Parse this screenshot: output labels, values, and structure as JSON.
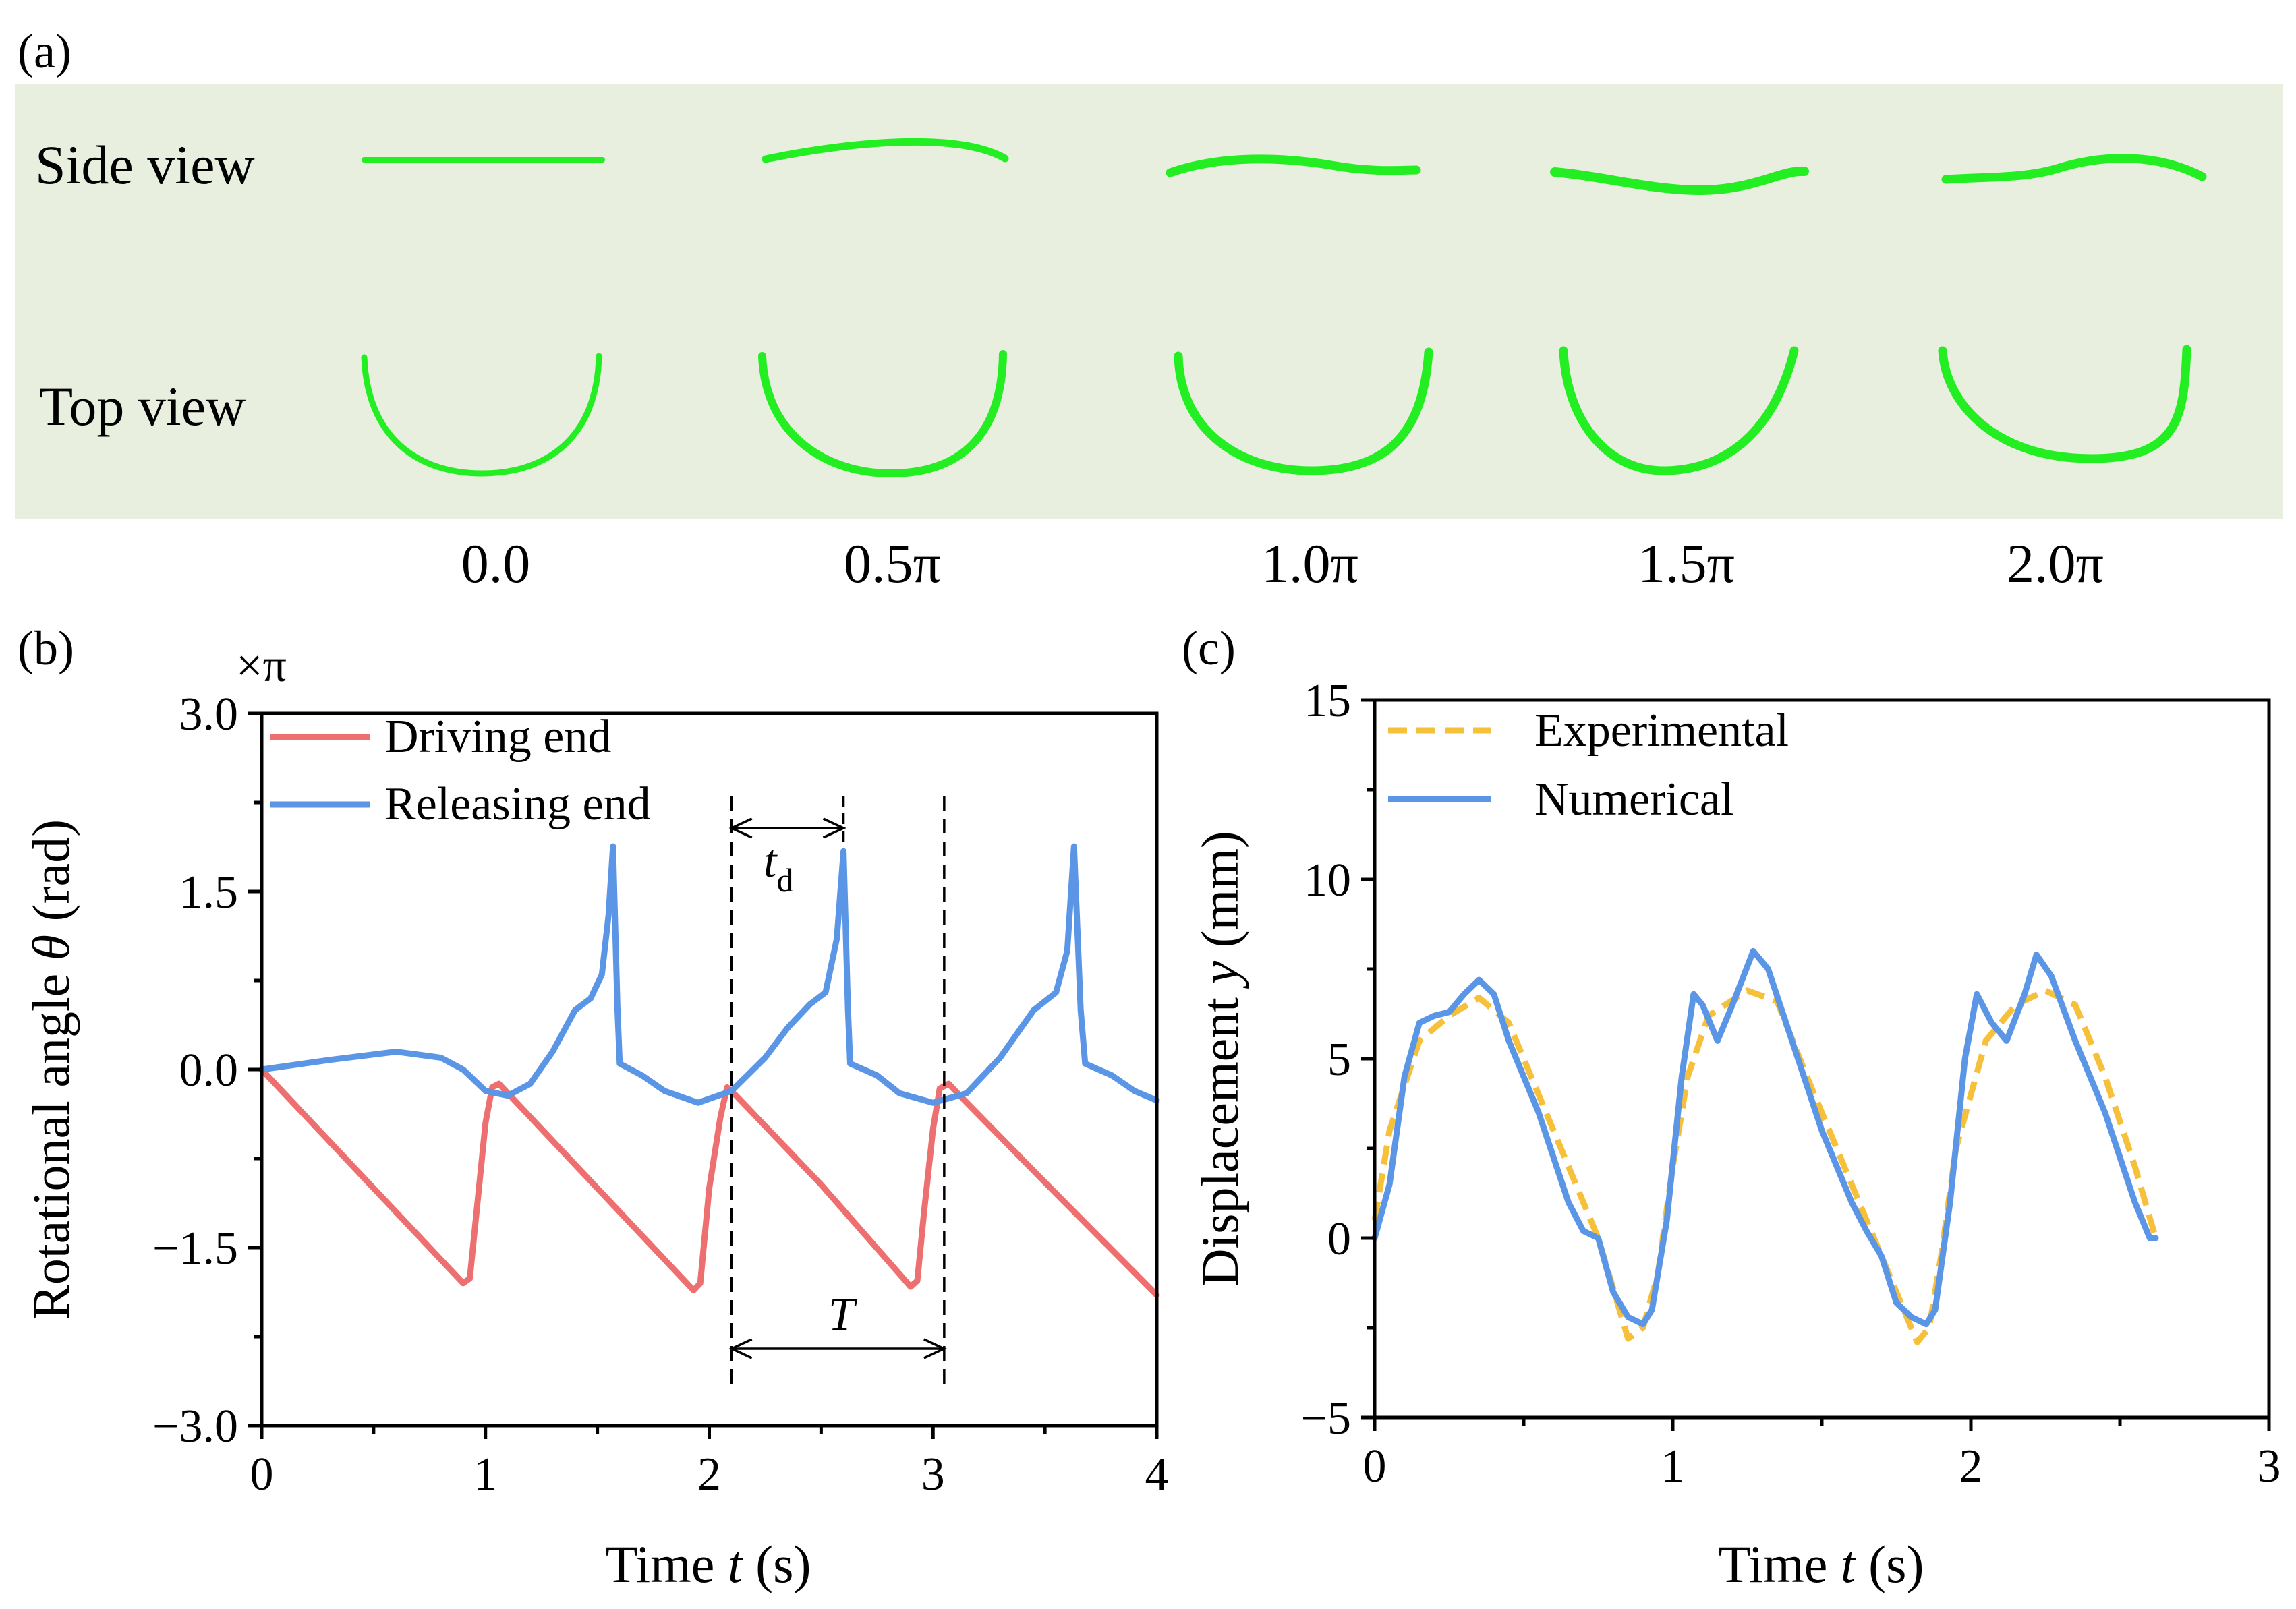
{
  "panel_labels": {
    "a": "(a)",
    "b": "(b)",
    "c": "(c)"
  },
  "panel_a": {
    "side_view_label": "Side view",
    "top_view_label": "Top view",
    "phases": [
      "0.0",
      "0.5π",
      "1.0π",
      "1.5π",
      "2.0π"
    ],
    "background_color": "#e9efdf",
    "strip_color": "#22ee22"
  },
  "chart_data": [
    {
      "id": "b",
      "type": "line",
      "title": "",
      "xlabel": "Time t (s)",
      "xlabel_parts": {
        "pre": "Time ",
        "var": "t",
        "post": " (s)"
      },
      "ylabel": "Rotational angle θ (rad)",
      "ylabel_parts": {
        "pre": "Rotational angle ",
        "var": "θ",
        "post": " (rad)"
      },
      "y_unit_multiplier": "×π",
      "xlim": [
        0,
        4
      ],
      "ylim": [
        -3.0,
        3.0
      ],
      "xticks": [
        0,
        1,
        2,
        3,
        4
      ],
      "xtick_labels": [
        "0",
        "1",
        "2",
        "3",
        "4"
      ],
      "yticks": [
        -3.0,
        -1.5,
        0.0,
        1.5,
        3.0
      ],
      "ytick_labels": [
        "−3.0",
        "−1.5",
        "0.0",
        "1.5",
        "3.0"
      ],
      "legend_position": "top-left",
      "annotations": {
        "td_label": "t",
        "td_subscript": "d",
        "period_label": "T",
        "td_range": [
          2.1,
          2.6
        ],
        "period_range": [
          2.1,
          3.05
        ],
        "dashed_lines_x": [
          2.1,
          3.05
        ]
      },
      "series": [
        {
          "name": "Driving end",
          "color": "#ee6f6f",
          "dash": false,
          "points": [
            [
              0,
              0
            ],
            [
              0.9,
              -1.8
            ],
            [
              0.93,
              -1.76
            ],
            [
              0.96,
              -1.2
            ],
            [
              1.0,
              -0.45
            ],
            [
              1.03,
              -0.15
            ],
            [
              1.06,
              -0.12
            ],
            [
              1.1,
              -0.2
            ],
            [
              1.5,
              -1.0
            ],
            [
              1.93,
              -1.86
            ],
            [
              1.96,
              -1.8
            ],
            [
              2.0,
              -1.0
            ],
            [
              2.05,
              -0.4
            ],
            [
              2.08,
              -0.15
            ],
            [
              2.12,
              -0.22
            ],
            [
              2.5,
              -0.97
            ],
            [
              2.9,
              -1.83
            ],
            [
              2.93,
              -1.78
            ],
            [
              2.96,
              -1.2
            ],
            [
              3.0,
              -0.5
            ],
            [
              3.03,
              -0.16
            ],
            [
              3.07,
              -0.12
            ],
            [
              3.12,
              -0.22
            ],
            [
              3.5,
              -0.95
            ],
            [
              4.0,
              -1.9
            ]
          ]
        },
        {
          "name": "Releasing end",
          "color": "#5b95e6",
          "dash": false,
          "points": [
            [
              0,
              0
            ],
            [
              0.3,
              0.08
            ],
            [
              0.6,
              0.15
            ],
            [
              0.8,
              0.1
            ],
            [
              0.9,
              0.0
            ],
            [
              1.0,
              -0.18
            ],
            [
              1.1,
              -0.22
            ],
            [
              1.2,
              -0.12
            ],
            [
              1.3,
              0.15
            ],
            [
              1.4,
              0.5
            ],
            [
              1.47,
              0.6
            ],
            [
              1.52,
              0.8
            ],
            [
              1.55,
              1.3
            ],
            [
              1.57,
              1.88
            ],
            [
              1.59,
              0.5
            ],
            [
              1.6,
              0.05
            ],
            [
              1.7,
              -0.05
            ],
            [
              1.8,
              -0.18
            ],
            [
              1.95,
              -0.28
            ],
            [
              2.1,
              -0.18
            ],
            [
              2.25,
              0.1
            ],
            [
              2.35,
              0.35
            ],
            [
              2.45,
              0.55
            ],
            [
              2.52,
              0.65
            ],
            [
              2.57,
              1.1
            ],
            [
              2.6,
              1.84
            ],
            [
              2.62,
              0.5
            ],
            [
              2.63,
              0.05
            ],
            [
              2.75,
              -0.05
            ],
            [
              2.85,
              -0.2
            ],
            [
              3.0,
              -0.28
            ],
            [
              3.15,
              -0.2
            ],
            [
              3.3,
              0.1
            ],
            [
              3.45,
              0.5
            ],
            [
              3.55,
              0.65
            ],
            [
              3.6,
              1.0
            ],
            [
              3.63,
              1.88
            ],
            [
              3.66,
              0.5
            ],
            [
              3.68,
              0.05
            ],
            [
              3.8,
              -0.05
            ],
            [
              3.9,
              -0.18
            ],
            [
              4.0,
              -0.26
            ]
          ]
        }
      ]
    },
    {
      "id": "c",
      "type": "line",
      "title": "",
      "xlabel": "Time t (s)",
      "xlabel_parts": {
        "pre": "Time ",
        "var": "t",
        "post": " (s)"
      },
      "ylabel": "Displacement y (mm)",
      "ylabel_parts": {
        "pre": "Displacement ",
        "var": "y",
        "post": " (mm)"
      },
      "xlim": [
        0,
        3
      ],
      "ylim": [
        -5,
        15
      ],
      "xticks": [
        0,
        1,
        2,
        3
      ],
      "xtick_labels": [
        "0",
        "1",
        "2",
        "3"
      ],
      "yticks": [
        -5,
        0,
        5,
        10,
        15
      ],
      "ytick_labels": [
        "−5",
        "0",
        "5",
        "10",
        "15"
      ],
      "legend_position": "top-left",
      "series": [
        {
          "name": "Experimental",
          "color": "#f7c03a",
          "dash": true,
          "points": [
            [
              0,
              0.5
            ],
            [
              0.05,
              3.0
            ],
            [
              0.15,
              5.5
            ],
            [
              0.25,
              6.2
            ],
            [
              0.35,
              6.7
            ],
            [
              0.45,
              6.0
            ],
            [
              0.55,
              4.0
            ],
            [
              0.65,
              2.0
            ],
            [
              0.75,
              0.0
            ],
            [
              0.85,
              -2.8
            ],
            [
              0.9,
              -2.5
            ],
            [
              0.95,
              -1.0
            ],
            [
              1.0,
              2.0
            ],
            [
              1.05,
              4.5
            ],
            [
              1.12,
              6.2
            ],
            [
              1.25,
              6.9
            ],
            [
              1.35,
              6.6
            ],
            [
              1.45,
              4.5
            ],
            [
              1.55,
              2.5
            ],
            [
              1.65,
              0.5
            ],
            [
              1.75,
              -1.5
            ],
            [
              1.82,
              -2.9
            ],
            [
              1.86,
              -2.5
            ],
            [
              1.9,
              -0.5
            ],
            [
              1.95,
              2.5
            ],
            [
              2.05,
              5.5
            ],
            [
              2.15,
              6.5
            ],
            [
              2.25,
              6.9
            ],
            [
              2.35,
              6.5
            ],
            [
              2.45,
              4.5
            ],
            [
              2.55,
              2.0
            ],
            [
              2.62,
              0.0
            ]
          ]
        },
        {
          "name": "Numerical",
          "color": "#5b95e6",
          "dash": false,
          "points": [
            [
              0,
              0.0
            ],
            [
              0.05,
              1.5
            ],
            [
              0.1,
              4.5
            ],
            [
              0.15,
              6.0
            ],
            [
              0.2,
              6.2
            ],
            [
              0.25,
              6.3
            ],
            [
              0.3,
              6.8
            ],
            [
              0.35,
              7.2
            ],
            [
              0.4,
              6.8
            ],
            [
              0.45,
              5.5
            ],
            [
              0.55,
              3.5
            ],
            [
              0.65,
              1.0
            ],
            [
              0.7,
              0.2
            ],
            [
              0.75,
              0.0
            ],
            [
              0.8,
              -1.5
            ],
            [
              0.85,
              -2.2
            ],
            [
              0.9,
              -2.4
            ],
            [
              0.93,
              -2.0
            ],
            [
              0.98,
              0.5
            ],
            [
              1.03,
              4.5
            ],
            [
              1.07,
              6.8
            ],
            [
              1.1,
              6.5
            ],
            [
              1.15,
              5.5
            ],
            [
              1.2,
              6.5
            ],
            [
              1.27,
              8.0
            ],
            [
              1.32,
              7.5
            ],
            [
              1.4,
              5.5
            ],
            [
              1.5,
              3.0
            ],
            [
              1.6,
              1.0
            ],
            [
              1.65,
              0.2
            ],
            [
              1.7,
              -0.5
            ],
            [
              1.75,
              -1.8
            ],
            [
              1.8,
              -2.2
            ],
            [
              1.85,
              -2.4
            ],
            [
              1.88,
              -2.0
            ],
            [
              1.93,
              1.0
            ],
            [
              1.98,
              5.0
            ],
            [
              2.02,
              6.8
            ],
            [
              2.07,
              6.0
            ],
            [
              2.12,
              5.5
            ],
            [
              2.18,
              6.8
            ],
            [
              2.22,
              7.9
            ],
            [
              2.27,
              7.3
            ],
            [
              2.35,
              5.5
            ],
            [
              2.45,
              3.5
            ],
            [
              2.55,
              1.0
            ],
            [
              2.6,
              0.0
            ],
            [
              2.62,
              0.0
            ]
          ]
        }
      ]
    }
  ]
}
